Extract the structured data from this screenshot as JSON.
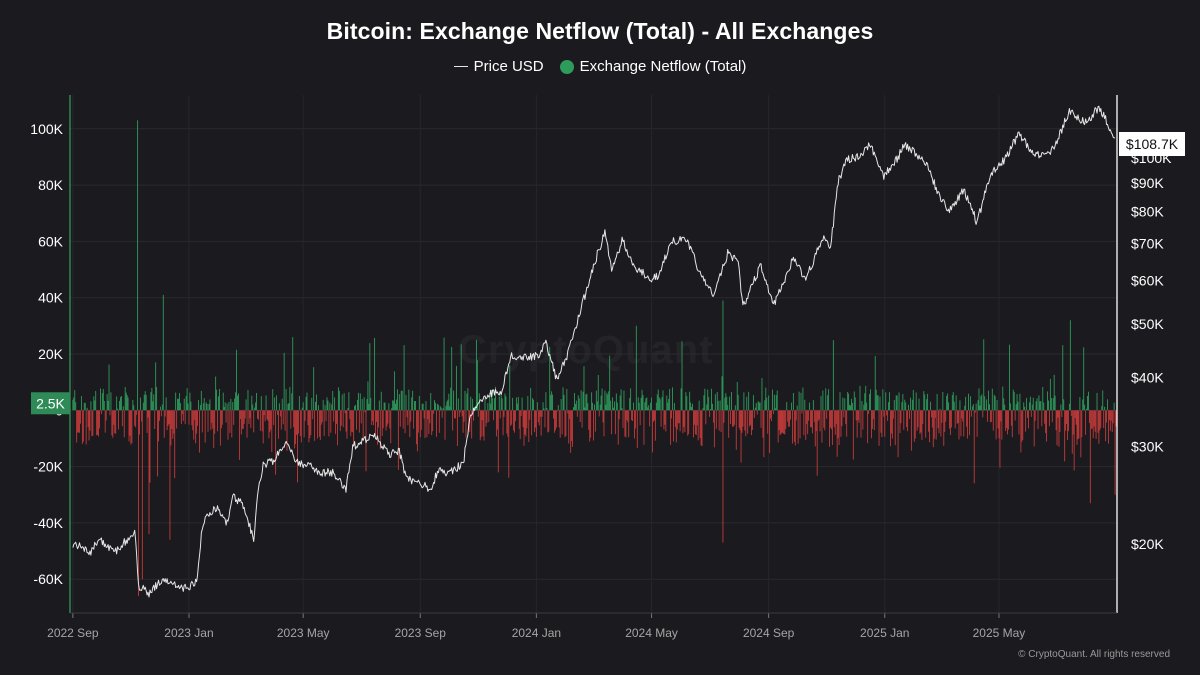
{
  "title": "Bitcoin: Exchange Netflow (Total) - All Exchanges",
  "legend": {
    "price_label": "Price USD",
    "netflow_label": "Exchange Netflow (Total)"
  },
  "colors": {
    "background": "#1b1b1f",
    "price_line": "#e6e6e6",
    "inflow": "#2e9a5b",
    "outflow": "#c23a3a",
    "badge_green": "#2e8b57"
  },
  "watermark": "CryptoQuant",
  "copyright": "© CryptoQuant. All rights reserved",
  "chart_data": {
    "type": "bar",
    "title": "Bitcoin: Exchange Netflow (Total) - All Exchanges",
    "x_axis": {
      "tick_labels": [
        "2022 Sep",
        "2023 Jan",
        "2023 May",
        "2023 Sep",
        "2024 Jan",
        "2024 May",
        "2024 Sep",
        "2025 Jan",
        "2025 May"
      ],
      "tick_dates": [
        "2022-09-01",
        "2023-01-01",
        "2023-05-01",
        "2023-09-01",
        "2024-01-01",
        "2024-05-01",
        "2024-09-01",
        "2025-01-01",
        "2025-05-01"
      ],
      "range": [
        "2022-08-29",
        "2025-09-02"
      ]
    },
    "y_left": {
      "label": "",
      "range": [
        -72000,
        112000
      ],
      "ticks": [
        100000,
        80000,
        60000,
        40000,
        20000,
        0,
        -20000,
        -40000,
        -60000
      ],
      "tick_labels": [
        "100K",
        "80K",
        "60K",
        "40K",
        "20K",
        "0",
        "-20K",
        "-40K",
        "-60K"
      ],
      "current_value_label": "2.5K"
    },
    "y_right": {
      "label": "",
      "scale": "log",
      "range": [
        15000,
        130000
      ],
      "ticks": [
        100000,
        90000,
        80000,
        70000,
        60000,
        50000,
        40000,
        30000,
        20000
      ],
      "tick_labels": [
        "$100K",
        "$90K",
        "$80K",
        "$70K",
        "$60K",
        "$50K",
        "$40K",
        "$30K",
        "$20K"
      ],
      "current_value_label": "$108.7K"
    },
    "grid": true,
    "legend_position": "top-center",
    "series": [
      {
        "name": "Price USD",
        "type": "line",
        "axis": "right",
        "points": [
          [
            "2022-09-01",
            20000
          ],
          [
            "2022-09-10",
            19700
          ],
          [
            "2022-09-20",
            19200
          ],
          [
            "2022-09-28",
            20500
          ],
          [
            "2022-10-05",
            20000
          ],
          [
            "2022-10-15",
            19300
          ],
          [
            "2022-10-25",
            20100
          ],
          [
            "2022-11-01",
            20400
          ],
          [
            "2022-11-05",
            21200
          ],
          [
            "2022-11-09",
            16800
          ],
          [
            "2022-11-20",
            16300
          ],
          [
            "2022-12-01",
            17000
          ],
          [
            "2022-12-10",
            17100
          ],
          [
            "2022-12-20",
            16800
          ],
          [
            "2022-12-31",
            16600
          ],
          [
            "2023-01-10",
            17300
          ],
          [
            "2023-01-14",
            20800
          ],
          [
            "2023-01-20",
            22800
          ],
          [
            "2023-01-31",
            23100
          ],
          [
            "2023-02-10",
            21800
          ],
          [
            "2023-02-16",
            24300
          ],
          [
            "2023-02-28",
            23500
          ],
          [
            "2023-03-10",
            20200
          ],
          [
            "2023-03-14",
            24700
          ],
          [
            "2023-03-20",
            27800
          ],
          [
            "2023-03-31",
            28400
          ],
          [
            "2023-04-11",
            30300
          ],
          [
            "2023-04-14",
            30500
          ],
          [
            "2023-04-25",
            28000
          ],
          [
            "2023-05-10",
            27600
          ],
          [
            "2023-05-20",
            26900
          ],
          [
            "2023-06-01",
            27000
          ],
          [
            "2023-06-15",
            25100
          ],
          [
            "2023-06-22",
            30000
          ],
          [
            "2023-07-01",
            30600
          ],
          [
            "2023-07-14",
            31400
          ],
          [
            "2023-07-31",
            29200
          ],
          [
            "2023-08-10",
            29400
          ],
          [
            "2023-08-18",
            26200
          ],
          [
            "2023-08-31",
            25900
          ],
          [
            "2023-09-11",
            25100
          ],
          [
            "2023-09-20",
            27100
          ],
          [
            "2023-10-01",
            27000
          ],
          [
            "2023-10-16",
            27900
          ],
          [
            "2023-10-24",
            34500
          ],
          [
            "2023-11-10",
            37300
          ],
          [
            "2023-11-25",
            37800
          ],
          [
            "2023-12-05",
            43800
          ],
          [
            "2023-12-20",
            43600
          ],
          [
            "2024-01-05",
            44000
          ],
          [
            "2024-01-11",
            46600
          ],
          [
            "2024-01-22",
            39800
          ],
          [
            "2024-02-01",
            43000
          ],
          [
            "2024-02-15",
            52000
          ],
          [
            "2024-02-28",
            62000
          ],
          [
            "2024-03-05",
            67000
          ],
          [
            "2024-03-13",
            73100
          ],
          [
            "2024-03-20",
            62500
          ],
          [
            "2024-03-31",
            71000
          ],
          [
            "2024-04-13",
            63500
          ],
          [
            "2024-04-30",
            60600
          ],
          [
            "2024-05-10",
            61500
          ],
          [
            "2024-05-21",
            71000
          ],
          [
            "2024-06-07",
            70800
          ],
          [
            "2024-06-24",
            60300
          ],
          [
            "2024-07-05",
            56300
          ],
          [
            "2024-07-20",
            67200
          ],
          [
            "2024-07-31",
            64600
          ],
          [
            "2024-08-05",
            53900
          ],
          [
            "2024-08-24",
            64000
          ],
          [
            "2024-09-06",
            53900
          ],
          [
            "2024-09-27",
            65800
          ],
          [
            "2024-10-10",
            60300
          ],
          [
            "2024-10-29",
            72600
          ],
          [
            "2024-11-05",
            68900
          ],
          [
            "2024-11-13",
            90400
          ],
          [
            "2024-11-22",
            99000
          ],
          [
            "2024-12-05",
            101000
          ],
          [
            "2024-12-17",
            106000
          ],
          [
            "2024-12-30",
            92500
          ],
          [
            "2025-01-15",
            100000
          ],
          [
            "2025-01-20",
            106000
          ],
          [
            "2025-01-31",
            102400
          ],
          [
            "2025-02-15",
            96500
          ],
          [
            "2025-02-28",
            84500
          ],
          [
            "2025-03-10",
            80000
          ],
          [
            "2025-03-25",
            87400
          ],
          [
            "2025-04-08",
            76400
          ],
          [
            "2025-04-22",
            93400
          ],
          [
            "2025-05-08",
            100000
          ],
          [
            "2025-05-22",
            111000
          ],
          [
            "2025-06-05",
            101500
          ],
          [
            "2025-06-22",
            101000
          ],
          [
            "2025-07-03",
            109500
          ],
          [
            "2025-07-14",
            122000
          ],
          [
            "2025-07-31",
            115700
          ],
          [
            "2025-08-14",
            123500
          ],
          [
            "2025-08-22",
            116500
          ],
          [
            "2025-08-31",
            108700
          ]
        ]
      },
      {
        "name": "Exchange Netflow (Total)",
        "type": "bar",
        "axis": "left",
        "notable_values": [
          [
            "2022-11-08",
            103000
          ],
          [
            "2022-11-09",
            -66000
          ],
          [
            "2022-11-13",
            -60000
          ],
          [
            "2022-11-20",
            -44000
          ],
          [
            "2022-12-05",
            41000
          ],
          [
            "2022-12-12",
            -46000
          ],
          [
            "2023-04-20",
            26000
          ],
          [
            "2024-04-15",
            30000
          ],
          [
            "2024-07-15",
            39000
          ],
          [
            "2024-07-15",
            -47000
          ],
          [
            "2025-07-15",
            32000
          ],
          [
            "2025-08-05",
            -33000
          ],
          [
            "2025-08-31",
            -30000
          ]
        ]
      }
    ]
  }
}
